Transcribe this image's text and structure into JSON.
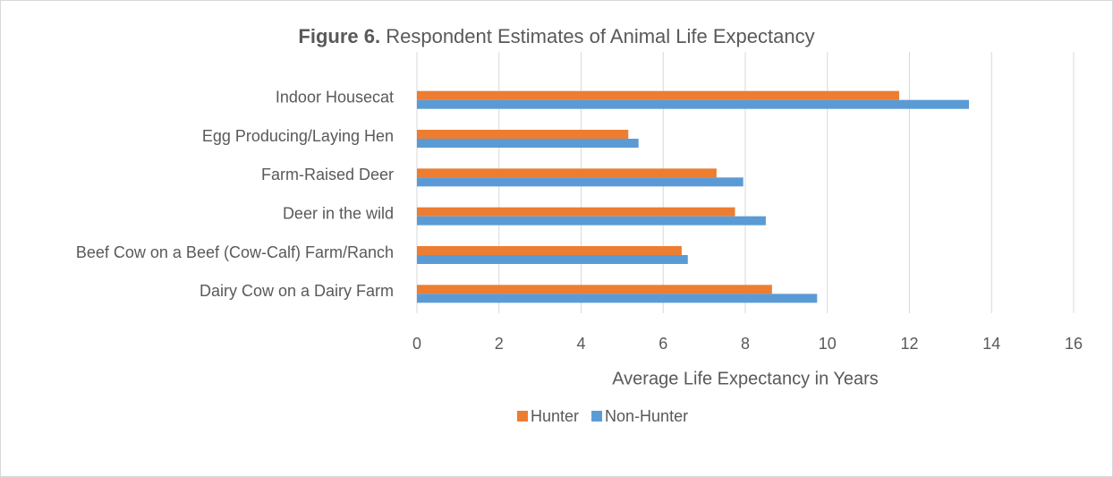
{
  "chart_data": {
    "type": "hbar",
    "figure_label": "Figure 6.",
    "title": "Respondent Estimates of Animal Life Expectancy",
    "xlabel": "Average Life Expectancy in Years",
    "categories": [
      "Indoor Housecat",
      "Egg Producing/Laying Hen",
      "Farm-Raised Deer",
      "Deer in the wild",
      "Beef Cow on a Beef (Cow-Calf) Farm/Ranch",
      "Dairy Cow on a Dairy Farm"
    ],
    "series": [
      {
        "name": "Hunter",
        "color": "#ED7D31",
        "values": [
          11.75,
          5.15,
          7.3,
          7.75,
          6.45,
          8.65
        ]
      },
      {
        "name": "Non-Hunter",
        "color": "#5B9BD5",
        "values": [
          13.45,
          5.4,
          7.95,
          8.5,
          6.6,
          9.75
        ]
      }
    ],
    "xlim": [
      0,
      16
    ],
    "xticks": [
      0,
      2,
      4,
      6,
      8,
      10,
      12,
      14,
      16
    ],
    "grid": true,
    "legend": "bottom"
  }
}
